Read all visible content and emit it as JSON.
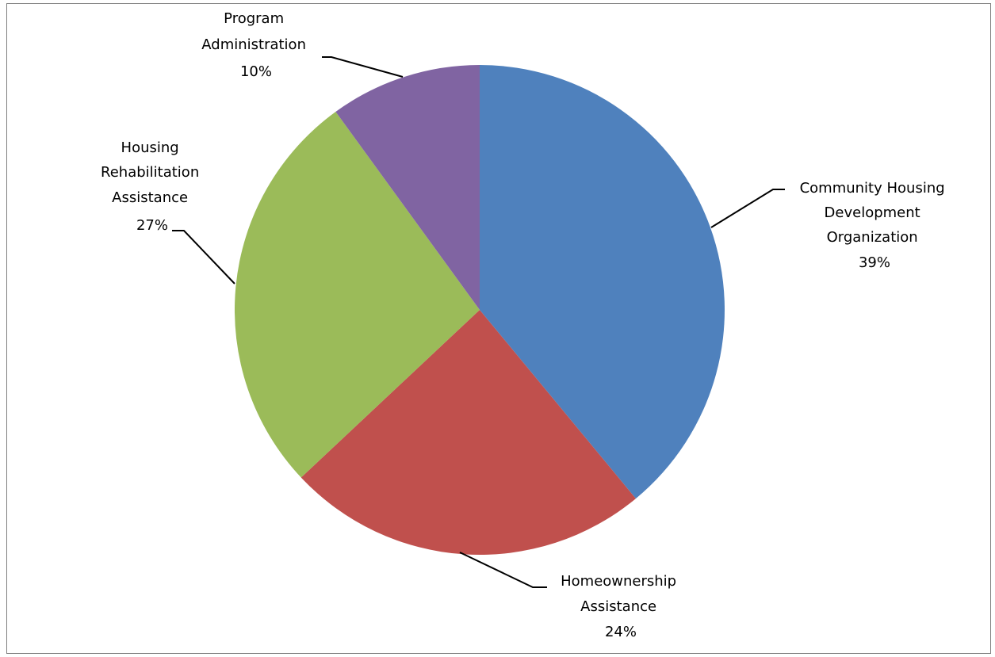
{
  "chart_data": {
    "type": "pie",
    "title": "",
    "slices": [
      {
        "name_lines": [
          "Community Housing",
          "Development",
          "Organization"
        ],
        "pct_label": "39%",
        "value": 39,
        "color": "#4f81bd"
      },
      {
        "name_lines": [
          "Homeownership",
          "Assistance"
        ],
        "pct_label": "24%",
        "value": 24,
        "color": "#c0504d"
      },
      {
        "name_lines": [
          "Housing",
          "Rehabilitation",
          "Assistance"
        ],
        "pct_label": "27%",
        "value": 27,
        "color": "#9bbb59"
      },
      {
        "name_lines": [
          "Program",
          "Administration"
        ],
        "pct_label": "10%",
        "value": 10,
        "color": "#8064a2"
      }
    ],
    "start_angle": "12 o'clock",
    "direction": "clockwise",
    "legend": "none",
    "labels": "outside with leader lines"
  }
}
